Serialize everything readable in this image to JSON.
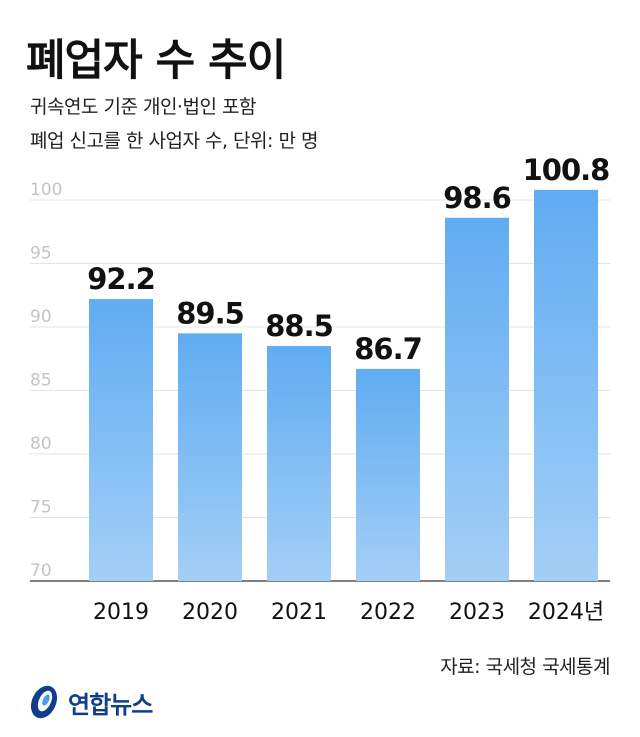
{
  "title": "폐업자 수 추이",
  "subtitle_lines": [
    "귀속연도 기준 개인·법인 포함",
    "폐업 신고를 한 사업자 수, 단위: 만 명"
  ],
  "source": "자료: 국세청 국세통계",
  "logo": {
    "text": "연합뉴스",
    "icon": "yonhap-logo-icon"
  },
  "colors": {
    "bar_top": "#60acf2",
    "bar_bottom": "#a3cff6",
    "grid": "#e4e4e4",
    "axis": "#555555",
    "logo_blue": "#0f3f8a"
  },
  "chart_data": {
    "type": "bar",
    "categories": [
      "2019",
      "2020",
      "2021",
      "2022",
      "2023",
      "2024년"
    ],
    "values": [
      92.2,
      89.5,
      88.5,
      86.7,
      98.6,
      100.8
    ],
    "value_labels": [
      "92.2",
      "89.5",
      "88.5",
      "86.7",
      "98.6",
      "100.8"
    ],
    "ylim": [
      70,
      100
    ],
    "yticks": [
      70,
      75,
      80,
      85,
      90,
      95,
      100
    ],
    "grid": true
  }
}
